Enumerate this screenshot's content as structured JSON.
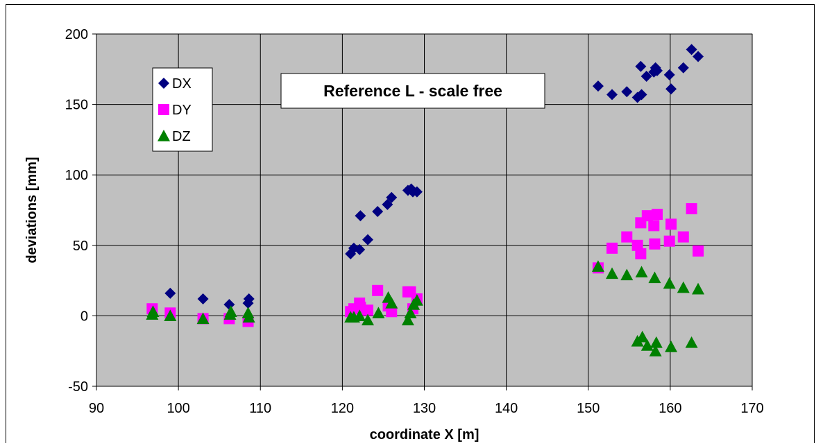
{
  "chart_data": {
    "type": "scatter",
    "title": "",
    "annotation": "Reference L - scale free",
    "xlabel": "coordinate X [m]",
    "ylabel": "deviations [mm]",
    "xlim": [
      90,
      170
    ],
    "ylim": [
      -50,
      200
    ],
    "xticks": [
      90,
      100,
      110,
      120,
      130,
      140,
      150,
      160,
      170
    ],
    "yticks": [
      -50,
      0,
      50,
      100,
      150,
      200
    ],
    "grid": true,
    "legend_position": "top-left",
    "plot_background": "#c0c0c0",
    "series": [
      {
        "name": "DX",
        "marker": "diamond",
        "color": "#000080",
        "points": [
          [
            96.8,
            3
          ],
          [
            99.0,
            16
          ],
          [
            103.0,
            12
          ],
          [
            106.2,
            8
          ],
          [
            108.5,
            9
          ],
          [
            108.6,
            12
          ],
          [
            121.0,
            44
          ],
          [
            121.4,
            48
          ],
          [
            122.1,
            47
          ],
          [
            122.2,
            71
          ],
          [
            123.1,
            54
          ],
          [
            124.3,
            74
          ],
          [
            125.5,
            79
          ],
          [
            126.0,
            84
          ],
          [
            128.0,
            89
          ],
          [
            128.4,
            90
          ],
          [
            128.6,
            88
          ],
          [
            129.1,
            88
          ],
          [
            151.2,
            163
          ],
          [
            152.9,
            157
          ],
          [
            154.7,
            159
          ],
          [
            156.0,
            155
          ],
          [
            156.4,
            177
          ],
          [
            156.5,
            157
          ],
          [
            157.1,
            170
          ],
          [
            158.0,
            173
          ],
          [
            158.2,
            176
          ],
          [
            158.4,
            174
          ],
          [
            159.9,
            171
          ],
          [
            160.1,
            161
          ],
          [
            161.6,
            176
          ],
          [
            162.6,
            189
          ],
          [
            163.4,
            184
          ]
        ]
      },
      {
        "name": "DY",
        "marker": "square",
        "color": "#ff00ff",
        "points": [
          [
            96.8,
            5
          ],
          [
            99.0,
            2
          ],
          [
            103.0,
            -2
          ],
          [
            106.2,
            -2
          ],
          [
            108.5,
            -4
          ],
          [
            121.0,
            3
          ],
          [
            121.4,
            5
          ],
          [
            122.1,
            9
          ],
          [
            122.2,
            6
          ],
          [
            123.1,
            4
          ],
          [
            124.3,
            18
          ],
          [
            125.6,
            7
          ],
          [
            126.0,
            3
          ],
          [
            128.0,
            17
          ],
          [
            128.3,
            17
          ],
          [
            128.6,
            5
          ],
          [
            129.1,
            12
          ],
          [
            151.2,
            34
          ],
          [
            152.9,
            48
          ],
          [
            154.7,
            56
          ],
          [
            156.0,
            50
          ],
          [
            156.4,
            66
          ],
          [
            156.4,
            44
          ],
          [
            157.2,
            71
          ],
          [
            158.0,
            64
          ],
          [
            158.1,
            51
          ],
          [
            158.4,
            72
          ],
          [
            159.9,
            53
          ],
          [
            160.1,
            65
          ],
          [
            161.6,
            56
          ],
          [
            162.6,
            76
          ],
          [
            163.4,
            46
          ]
        ]
      },
      {
        "name": "DZ",
        "marker": "triangle",
        "color": "#008000",
        "points": [
          [
            96.8,
            1
          ],
          [
            96.9,
            3
          ],
          [
            99.0,
            0
          ],
          [
            103.0,
            -2
          ],
          [
            106.3,
            1
          ],
          [
            106.4,
            3
          ],
          [
            108.5,
            2
          ],
          [
            108.6,
            -1
          ],
          [
            121.0,
            -1
          ],
          [
            121.4,
            -1
          ],
          [
            122.1,
            0
          ],
          [
            123.1,
            -3
          ],
          [
            124.4,
            2
          ],
          [
            125.6,
            13
          ],
          [
            126.0,
            9
          ],
          [
            128.0,
            -3
          ],
          [
            128.3,
            2
          ],
          [
            128.7,
            8
          ],
          [
            129.1,
            11
          ],
          [
            151.2,
            35
          ],
          [
            152.9,
            30
          ],
          [
            154.7,
            29
          ],
          [
            156.0,
            -18
          ],
          [
            156.5,
            31
          ],
          [
            156.6,
            -15
          ],
          [
            157.2,
            -21
          ],
          [
            158.1,
            27
          ],
          [
            158.2,
            -25
          ],
          [
            158.3,
            -19
          ],
          [
            159.9,
            23
          ],
          [
            160.1,
            -22
          ],
          [
            161.6,
            20
          ],
          [
            162.6,
            -19
          ],
          [
            163.4,
            19
          ]
        ]
      }
    ]
  }
}
